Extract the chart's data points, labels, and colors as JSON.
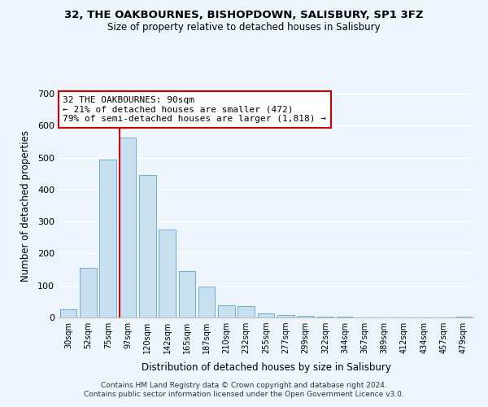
{
  "title": "32, THE OAKBOURNES, BISHOPDOWN, SALISBURY, SP1 3FZ",
  "subtitle": "Size of property relative to detached houses in Salisbury",
  "xlabel": "Distribution of detached houses by size in Salisbury",
  "ylabel": "Number of detached properties",
  "bar_color": "#c8dff0",
  "bar_edge_color": "#6baed6",
  "categories": [
    "30sqm",
    "52sqm",
    "75sqm",
    "97sqm",
    "120sqm",
    "142sqm",
    "165sqm",
    "187sqm",
    "210sqm",
    "232sqm",
    "255sqm",
    "277sqm",
    "299sqm",
    "322sqm",
    "344sqm",
    "367sqm",
    "389sqm",
    "412sqm",
    "434sqm",
    "457sqm",
    "479sqm"
  ],
  "values": [
    25,
    155,
    493,
    563,
    445,
    275,
    145,
    98,
    37,
    35,
    13,
    8,
    5,
    3,
    2,
    1,
    1,
    0,
    0,
    0,
    2
  ],
  "vline_x_idx": 3,
  "vline_color": "#cc0000",
  "annotation_text": "32 THE OAKBOURNES: 90sqm\n← 21% of detached houses are smaller (472)\n79% of semi-detached houses are larger (1,818) →",
  "annotation_box_color": "#ffffff",
  "annotation_box_edge_color": "#cc0000",
  "ylim": [
    0,
    700
  ],
  "yticks": [
    0,
    100,
    200,
    300,
    400,
    500,
    600,
    700
  ],
  "footer_line1": "Contains HM Land Registry data © Crown copyright and database right 2024.",
  "footer_line2": "Contains public sector information licensed under the Open Government Licence v3.0.",
  "bg_color": "#eef4fb"
}
